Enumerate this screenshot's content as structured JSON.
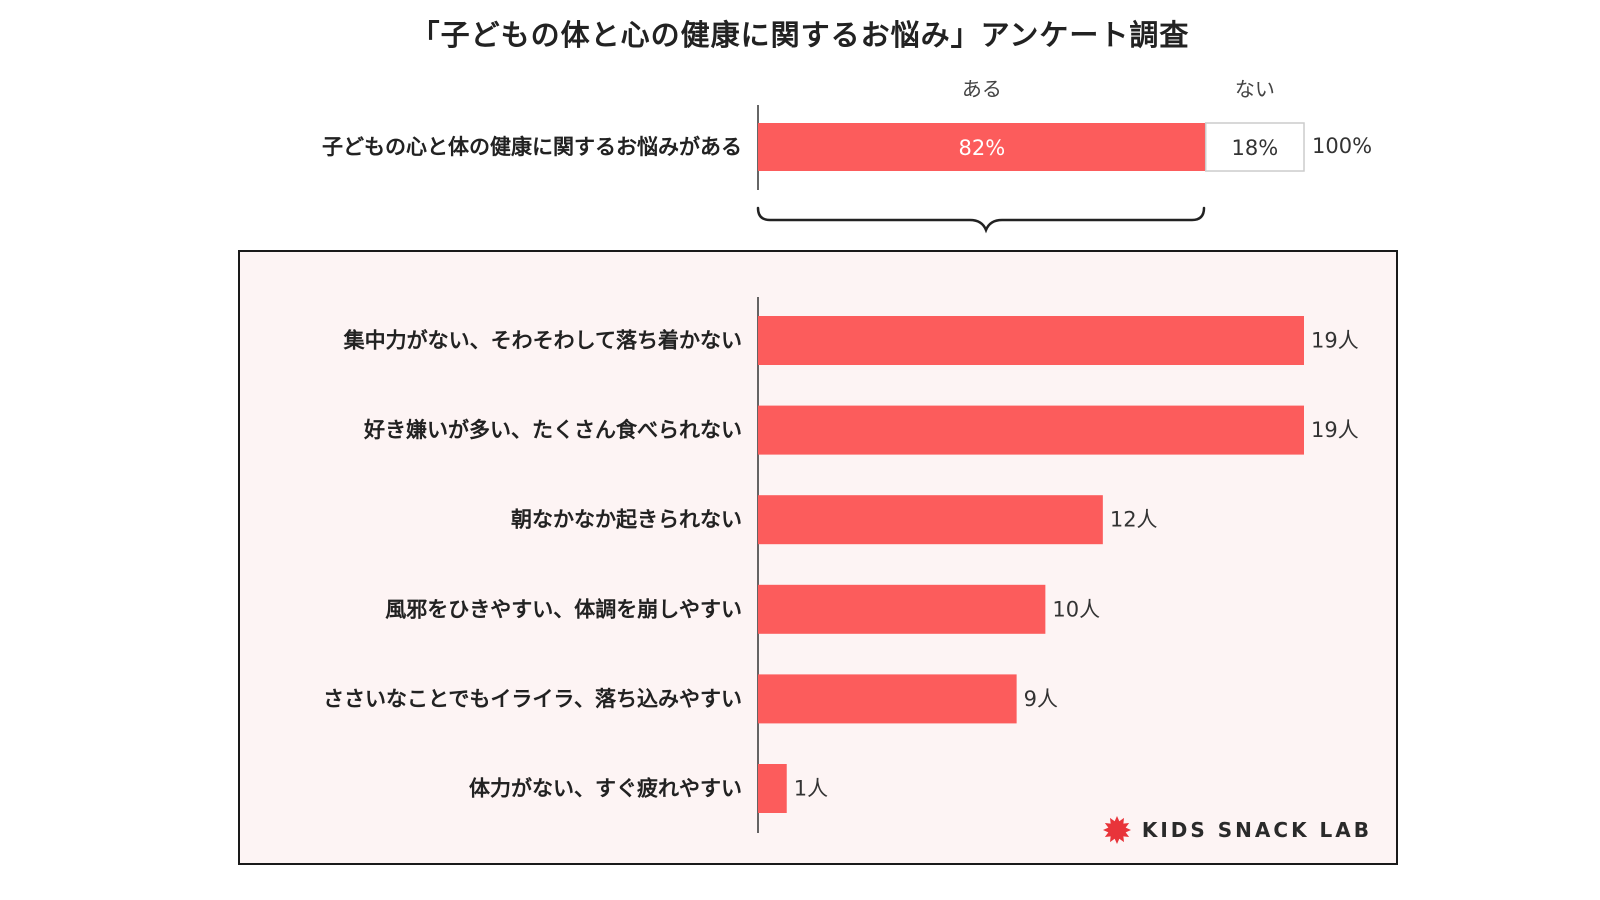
{
  "title": "「子どもの体と心の健康に関するお悩み」アンケート調査",
  "brand": {
    "name": "KIDS SNACK LAB",
    "logo_icon": "red-starburst-icon",
    "logo_color": "#e8343a"
  },
  "colors": {
    "bar": "#fc5c5c",
    "bar_outline": "#cccccc",
    "panel_bg": "#fdf4f4",
    "panel_border": "#1a1a1a"
  },
  "chart_data": [
    {
      "type": "bar",
      "orientation": "horizontal",
      "stacked": true,
      "categories": [
        "子どもの心と体の健康に関するお悩みがある"
      ],
      "series": [
        {
          "name": "ある",
          "values": [
            82
          ],
          "labels": [
            "82%"
          ]
        },
        {
          "name": "ない",
          "values": [
            18
          ],
          "labels": [
            "18%"
          ]
        }
      ],
      "total_label": "100%",
      "xlim": [
        0,
        100
      ],
      "grid": false,
      "legend": "column headers above bar"
    },
    {
      "type": "bar",
      "orientation": "horizontal",
      "categories": [
        "集中力がない、そわそわして落ち着かない",
        "好き嫌いが多い、たくさん食べられない",
        "朝なかなか起きられない",
        "風邪をひきやすい、体調を崩しやすい",
        "ささいなことでもイライラ、落ち込みやすい",
        "体力がない、すぐ疲れやすい"
      ],
      "values": [
        19,
        19,
        12,
        10,
        9,
        1
      ],
      "value_labels": [
        "19人",
        "19人",
        "12人",
        "10人",
        "9人",
        "1人"
      ],
      "xlim": [
        0,
        19
      ],
      "grid": false,
      "legend": "none"
    }
  ]
}
